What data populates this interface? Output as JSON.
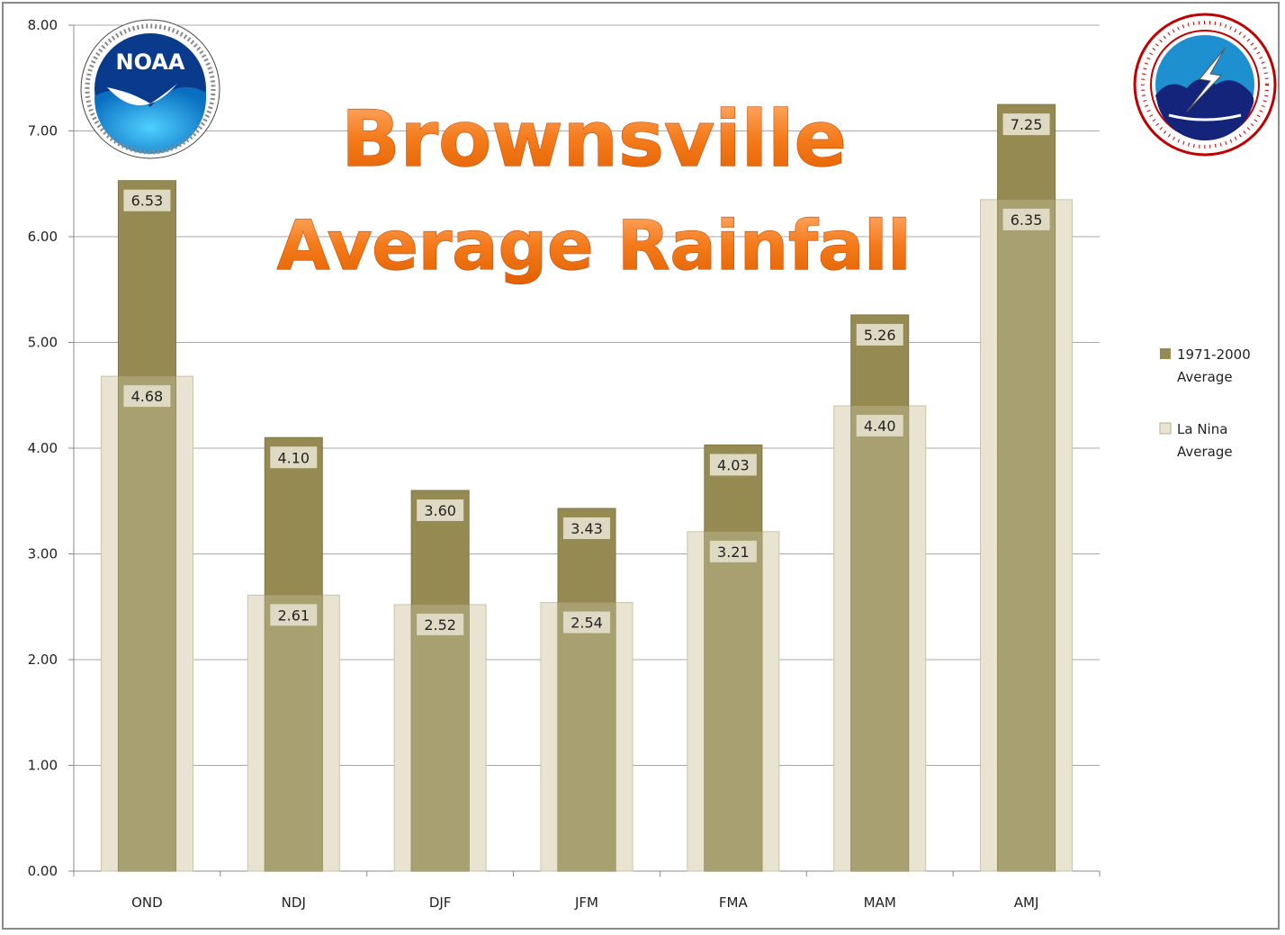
{
  "title_lines": [
    "Brownsville",
    "Average Rainfall"
  ],
  "logos": {
    "left": {
      "name": "NOAA",
      "text": "NOAA",
      "ring_text": "NATIONAL OCEANIC AND ATMOSPHERIC ADMINISTRATION · U.S. DEPARTMENT OF COMMERCE"
    },
    "right": {
      "name": "National Weather Service",
      "ring_top": "NATIONAL WEATHER SERVICE",
      "ring_bottom": "U.S. DEPARTMENT OF COMMERCE-NOAA"
    }
  },
  "chart_data": {
    "type": "bar",
    "categories": [
      "OND",
      "NDJ",
      "DJF",
      "JFM",
      "FMA",
      "MAM",
      "AMJ"
    ],
    "series": [
      {
        "name": "1971-2000 Average",
        "values": [
          6.53,
          4.1,
          3.6,
          3.43,
          4.03,
          5.26,
          7.25
        ],
        "color": "#958b52"
      },
      {
        "name": "La Nina Average",
        "values": [
          4.68,
          2.61,
          2.52,
          2.54,
          3.21,
          4.4,
          6.35
        ],
        "color": "#e9e4d1"
      }
    ],
    "overlap_fill": "#a8a070",
    "ylim": [
      0,
      8
    ],
    "yticks": [
      "0.00",
      "1.00",
      "2.00",
      "3.00",
      "4.00",
      "5.00",
      "6.00",
      "7.00",
      "8.00"
    ],
    "legend": {
      "position": "right",
      "entries": [
        [
          "1971-2000",
          "Average"
        ],
        [
          "La Nina",
          "Average"
        ]
      ]
    },
    "grid": true,
    "label_decimals": 2
  }
}
